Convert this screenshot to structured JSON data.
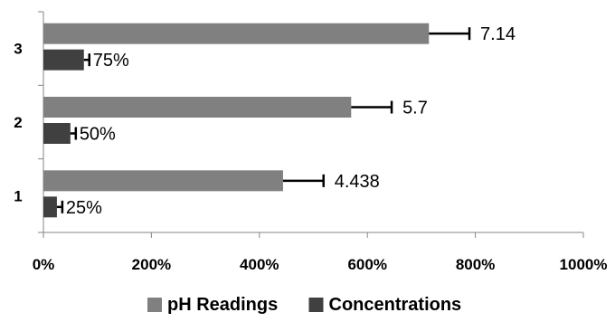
{
  "chart_data": {
    "type": "bar",
    "orientation": "horizontal",
    "categories": [
      "1",
      "2",
      "3"
    ],
    "series": [
      {
        "name": "pH Readings",
        "values": [
          4.438,
          5.7,
          7.14
        ],
        "labels": [
          "4.438",
          "5.7",
          "7.14"
        ],
        "error": [
          0.75,
          0.75,
          0.75
        ],
        "color": "#808080"
      },
      {
        "name": "Concentrations",
        "values": [
          0.25,
          0.5,
          0.75
        ],
        "labels": [
          "25%",
          "50%",
          "75%"
        ],
        "error": [
          0.1,
          0.1,
          0.1
        ],
        "color": "#404040"
      }
    ],
    "x_ticks": [
      "0%",
      "200%",
      "400%",
      "600%",
      "800%",
      "1000%"
    ],
    "xlim": [
      0,
      10
    ],
    "title": "",
    "xlabel": "",
    "ylabel": "",
    "grid": false,
    "legend_position": "bottom"
  }
}
